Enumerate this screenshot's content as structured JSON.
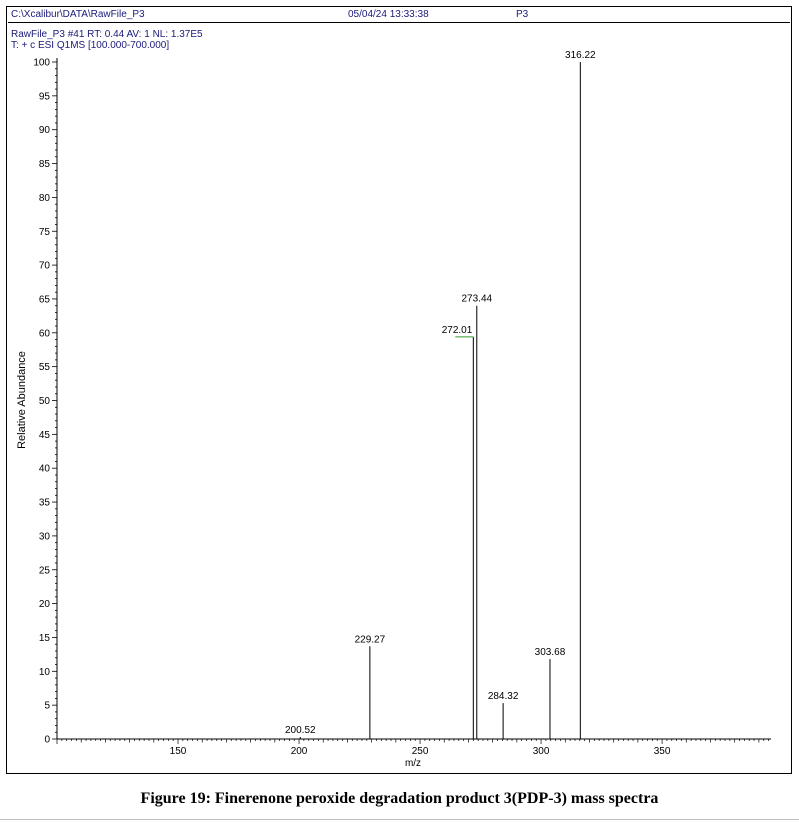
{
  "header": {
    "file_path": "C:\\Xcalibur\\DATA\\RawFile_P3",
    "datetime": "05/04/24 13:33:38",
    "sample": "P3"
  },
  "scan_info": "RawFile_P3 #41   RT: 0.44   AV: 1   NL: 1.37E5",
  "filter_line": "T: + c ESI Q1MS [100.000-700.000]",
  "caption": "Figure 19: Finerenone peroxide degradation product 3(PDP-3) mass spectra",
  "colors": {
    "text": "#1a1a7a",
    "peak": "#000000",
    "accent_peak": "#2e9a2e"
  },
  "chart_data": {
    "type": "bar",
    "xlabel": "m/z",
    "ylabel": "Relative Abundance",
    "xlim": [
      100,
      395
    ],
    "ylim": [
      0,
      100
    ],
    "x_ticks": [
      150,
      200,
      250,
      300,
      350
    ],
    "y_ticks": [
      0,
      5,
      10,
      15,
      20,
      25,
      30,
      35,
      40,
      45,
      50,
      55,
      60,
      65,
      70,
      75,
      80,
      85,
      90,
      95,
      100
    ],
    "peaks": [
      {
        "mz": 200.52,
        "abundance": 0.3,
        "label": "200.52"
      },
      {
        "mz": 229.27,
        "abundance": 13.7,
        "label": "229.27"
      },
      {
        "mz": 272.01,
        "abundance": 59.4,
        "label": "272.01"
      },
      {
        "mz": 273.44,
        "abundance": 64.0,
        "label": "273.44"
      },
      {
        "mz": 284.32,
        "abundance": 5.3,
        "label": "284.32"
      },
      {
        "mz": 303.68,
        "abundance": 11.8,
        "label": "303.68"
      },
      {
        "mz": 316.22,
        "abundance": 100,
        "label": "316.22"
      }
    ]
  }
}
